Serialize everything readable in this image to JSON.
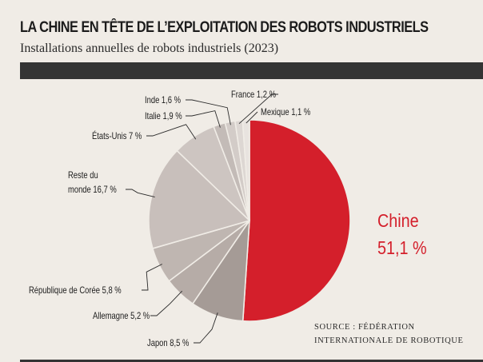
{
  "header": {
    "title": "LA CHINE EN TÊTE DE L’EXPLOITATION DES ROBOTS INDUSTRIELS",
    "subtitle": "Installations annuelles de robots industriels (2023)"
  },
  "source": {
    "line1": "SOURCE : FÉDÉRATION",
    "line2": "INTERNATIONALE DE ROBOTIQUE"
  },
  "chart_data": {
    "type": "pie",
    "title": "LA CHINE EN TÊTE DE L’EXPLOITATION DES ROBOTS INDUSTRIELS",
    "subtitle": "Installations annuelles de robots industriels (2023)",
    "unit": "%",
    "slices": [
      {
        "label": "Chine",
        "value": 51.1,
        "display": "51,1 %",
        "color": "#d41f2b"
      },
      {
        "label": "Japon",
        "value": 8.5,
        "display": "8,5 %",
        "color": "#a59b96"
      },
      {
        "label": "Allemagne",
        "value": 5.2,
        "display": "5,2 %",
        "color": "#b6aca7"
      },
      {
        "label": "République de Corée",
        "value": 5.8,
        "display": "5,8 %",
        "color": "#bfb6b1"
      },
      {
        "label": "Reste du monde",
        "value": 16.7,
        "display": "16,7 %",
        "color": "#c8bfbb"
      },
      {
        "label": "États-Unis",
        "value": 7,
        "display": "7 %",
        "color": "#cdc5c1"
      },
      {
        "label": "Italie",
        "value": 1.9,
        "display": "1,9 %",
        "color": "#c3bbb7"
      },
      {
        "label": "Inde",
        "value": 1.6,
        "display": "1,6 %",
        "color": "#d3ccc8"
      },
      {
        "label": "France",
        "value": 1.2,
        "display": "1,2 %",
        "color": "#ddd7d3"
      },
      {
        "label": "Mexique",
        "value": 1.1,
        "display": "1,1 %",
        "color": "#e8e3df"
      }
    ],
    "legend": "none",
    "labels": "outside with leader lines"
  }
}
